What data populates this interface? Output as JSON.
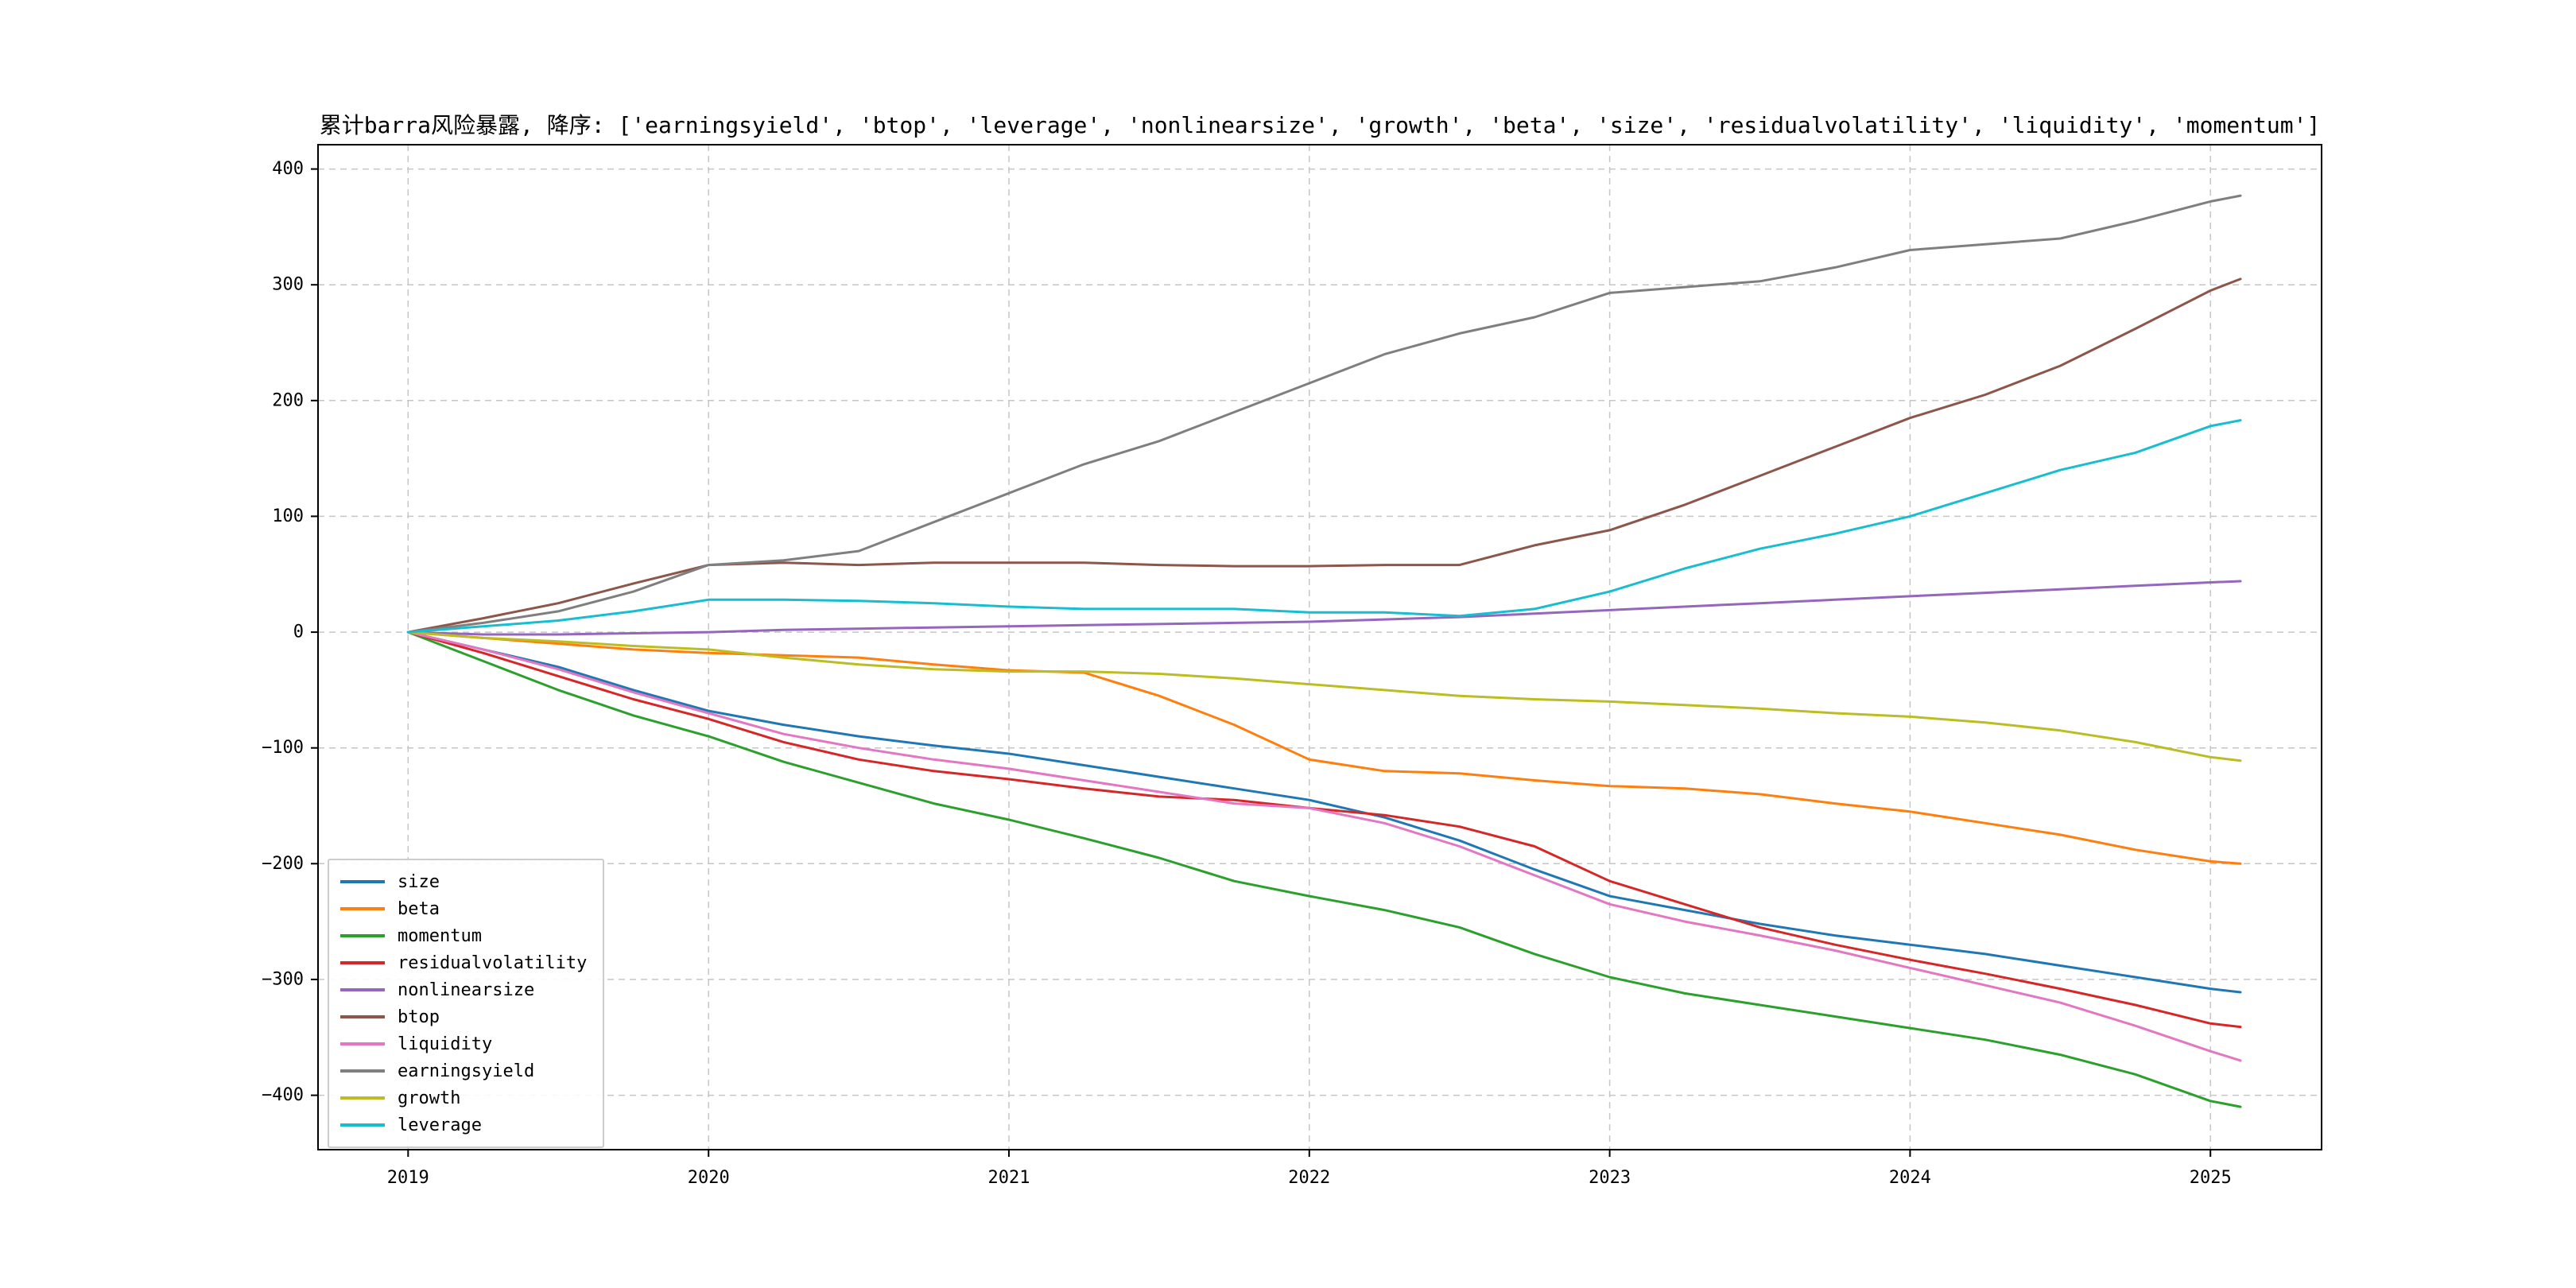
{
  "chart_data": {
    "type": "line",
    "title": "累计barra风险暴露, 降序: ['earningsyield', 'btop', 'leverage', 'nonlinearsize', 'growth', 'beta', 'size', 'residualvolatility', 'liquidity', 'momentum']",
    "xlabel": "",
    "ylabel": "",
    "grid": true,
    "grid_style": "dashed",
    "legend_position": "lower left",
    "xlim": [
      2018.7,
      2025.37
    ],
    "ylim": [
      -447,
      421
    ],
    "xticks": [
      2019,
      2020,
      2021,
      2022,
      2023,
      2024,
      2025
    ],
    "xtick_labels": [
      "2019",
      "2020",
      "2021",
      "2022",
      "2023",
      "2024",
      "2025"
    ],
    "yticks": [
      -400,
      -300,
      -200,
      -100,
      0,
      100,
      200,
      300,
      400
    ],
    "ytick_labels": [
      "−400",
      "−300",
      "−200",
      "−100",
      "0",
      "100",
      "200",
      "300",
      "400"
    ],
    "x": [
      2019.0,
      2019.25,
      2019.5,
      2019.75,
      2020.0,
      2020.25,
      2020.5,
      2020.75,
      2021.0,
      2021.25,
      2021.5,
      2021.75,
      2022.0,
      2022.25,
      2022.5,
      2022.75,
      2023.0,
      2023.25,
      2023.5,
      2023.75,
      2024.0,
      2024.25,
      2024.5,
      2024.75,
      2025.0,
      2025.1
    ],
    "series": [
      {
        "name": "size",
        "color": "#1f77b4",
        "values": [
          0,
          -15,
          -30,
          -50,
          -68,
          -80,
          -90,
          -98,
          -105,
          -115,
          -125,
          -135,
          -145,
          -160,
          -180,
          -205,
          -228,
          -240,
          -252,
          -262,
          -270,
          -278,
          -288,
          -298,
          -308,
          -311
        ]
      },
      {
        "name": "beta",
        "color": "#ff7f0e",
        "values": [
          0,
          -5,
          -10,
          -15,
          -18,
          -20,
          -22,
          -28,
          -33,
          -35,
          -55,
          -80,
          -110,
          -120,
          -122,
          -128,
          -133,
          -135,
          -140,
          -148,
          -155,
          -165,
          -175,
          -188,
          -198,
          -200
        ]
      },
      {
        "name": "momentum",
        "color": "#2ca02c",
        "values": [
          0,
          -25,
          -50,
          -72,
          -90,
          -112,
          -130,
          -148,
          -162,
          -178,
          -195,
          -215,
          -228,
          -240,
          -255,
          -278,
          -298,
          -312,
          -322,
          -332,
          -342,
          -352,
          -365,
          -382,
          -405,
          -410
        ]
      },
      {
        "name": "residualvolatility",
        "color": "#d62728",
        "values": [
          0,
          -18,
          -38,
          -58,
          -75,
          -95,
          -110,
          -120,
          -127,
          -135,
          -142,
          -145,
          -152,
          -158,
          -168,
          -185,
          -215,
          -235,
          -255,
          -270,
          -283,
          -295,
          -308,
          -322,
          -338,
          -341
        ]
      },
      {
        "name": "nonlinearsize",
        "color": "#9467bd",
        "values": [
          0,
          -2,
          -2,
          -1,
          0,
          2,
          3,
          4,
          5,
          6,
          7,
          8,
          9,
          11,
          13,
          16,
          19,
          22,
          25,
          28,
          31,
          34,
          37,
          40,
          43,
          44
        ]
      },
      {
        "name": "btop",
        "color": "#8c564b",
        "values": [
          0,
          12,
          25,
          42,
          58,
          60,
          58,
          60,
          60,
          60,
          58,
          57,
          57,
          58,
          58,
          75,
          88,
          110,
          135,
          160,
          185,
          205,
          230,
          262,
          295,
          305
        ]
      },
      {
        "name": "liquidity",
        "color": "#e377c2",
        "values": [
          0,
          -15,
          -32,
          -52,
          -70,
          -88,
          -100,
          -110,
          -118,
          -128,
          -138,
          -148,
          -152,
          -165,
          -185,
          -210,
          -235,
          -250,
          -262,
          -275,
          -290,
          -305,
          -320,
          -340,
          -362,
          -370
        ]
      },
      {
        "name": "earningsyield",
        "color": "#7f7f7f",
        "values": [
          0,
          8,
          18,
          35,
          58,
          62,
          70,
          95,
          120,
          145,
          165,
          190,
          215,
          240,
          258,
          272,
          293,
          298,
          303,
          315,
          330,
          335,
          340,
          355,
          372,
          377
        ]
      },
      {
        "name": "growth",
        "color": "#bcbd22",
        "values": [
          0,
          -5,
          -8,
          -12,
          -15,
          -22,
          -28,
          -32,
          -34,
          -34,
          -36,
          -40,
          -45,
          -50,
          -55,
          -58,
          -60,
          -63,
          -66,
          -70,
          -73,
          -78,
          -85,
          -95,
          -108,
          -111
        ]
      },
      {
        "name": "leverage",
        "color": "#17becf",
        "values": [
          0,
          5,
          10,
          18,
          28,
          28,
          27,
          25,
          22,
          20,
          20,
          20,
          17,
          17,
          14,
          20,
          35,
          55,
          72,
          85,
          100,
          120,
          140,
          155,
          178,
          183
        ]
      }
    ]
  }
}
